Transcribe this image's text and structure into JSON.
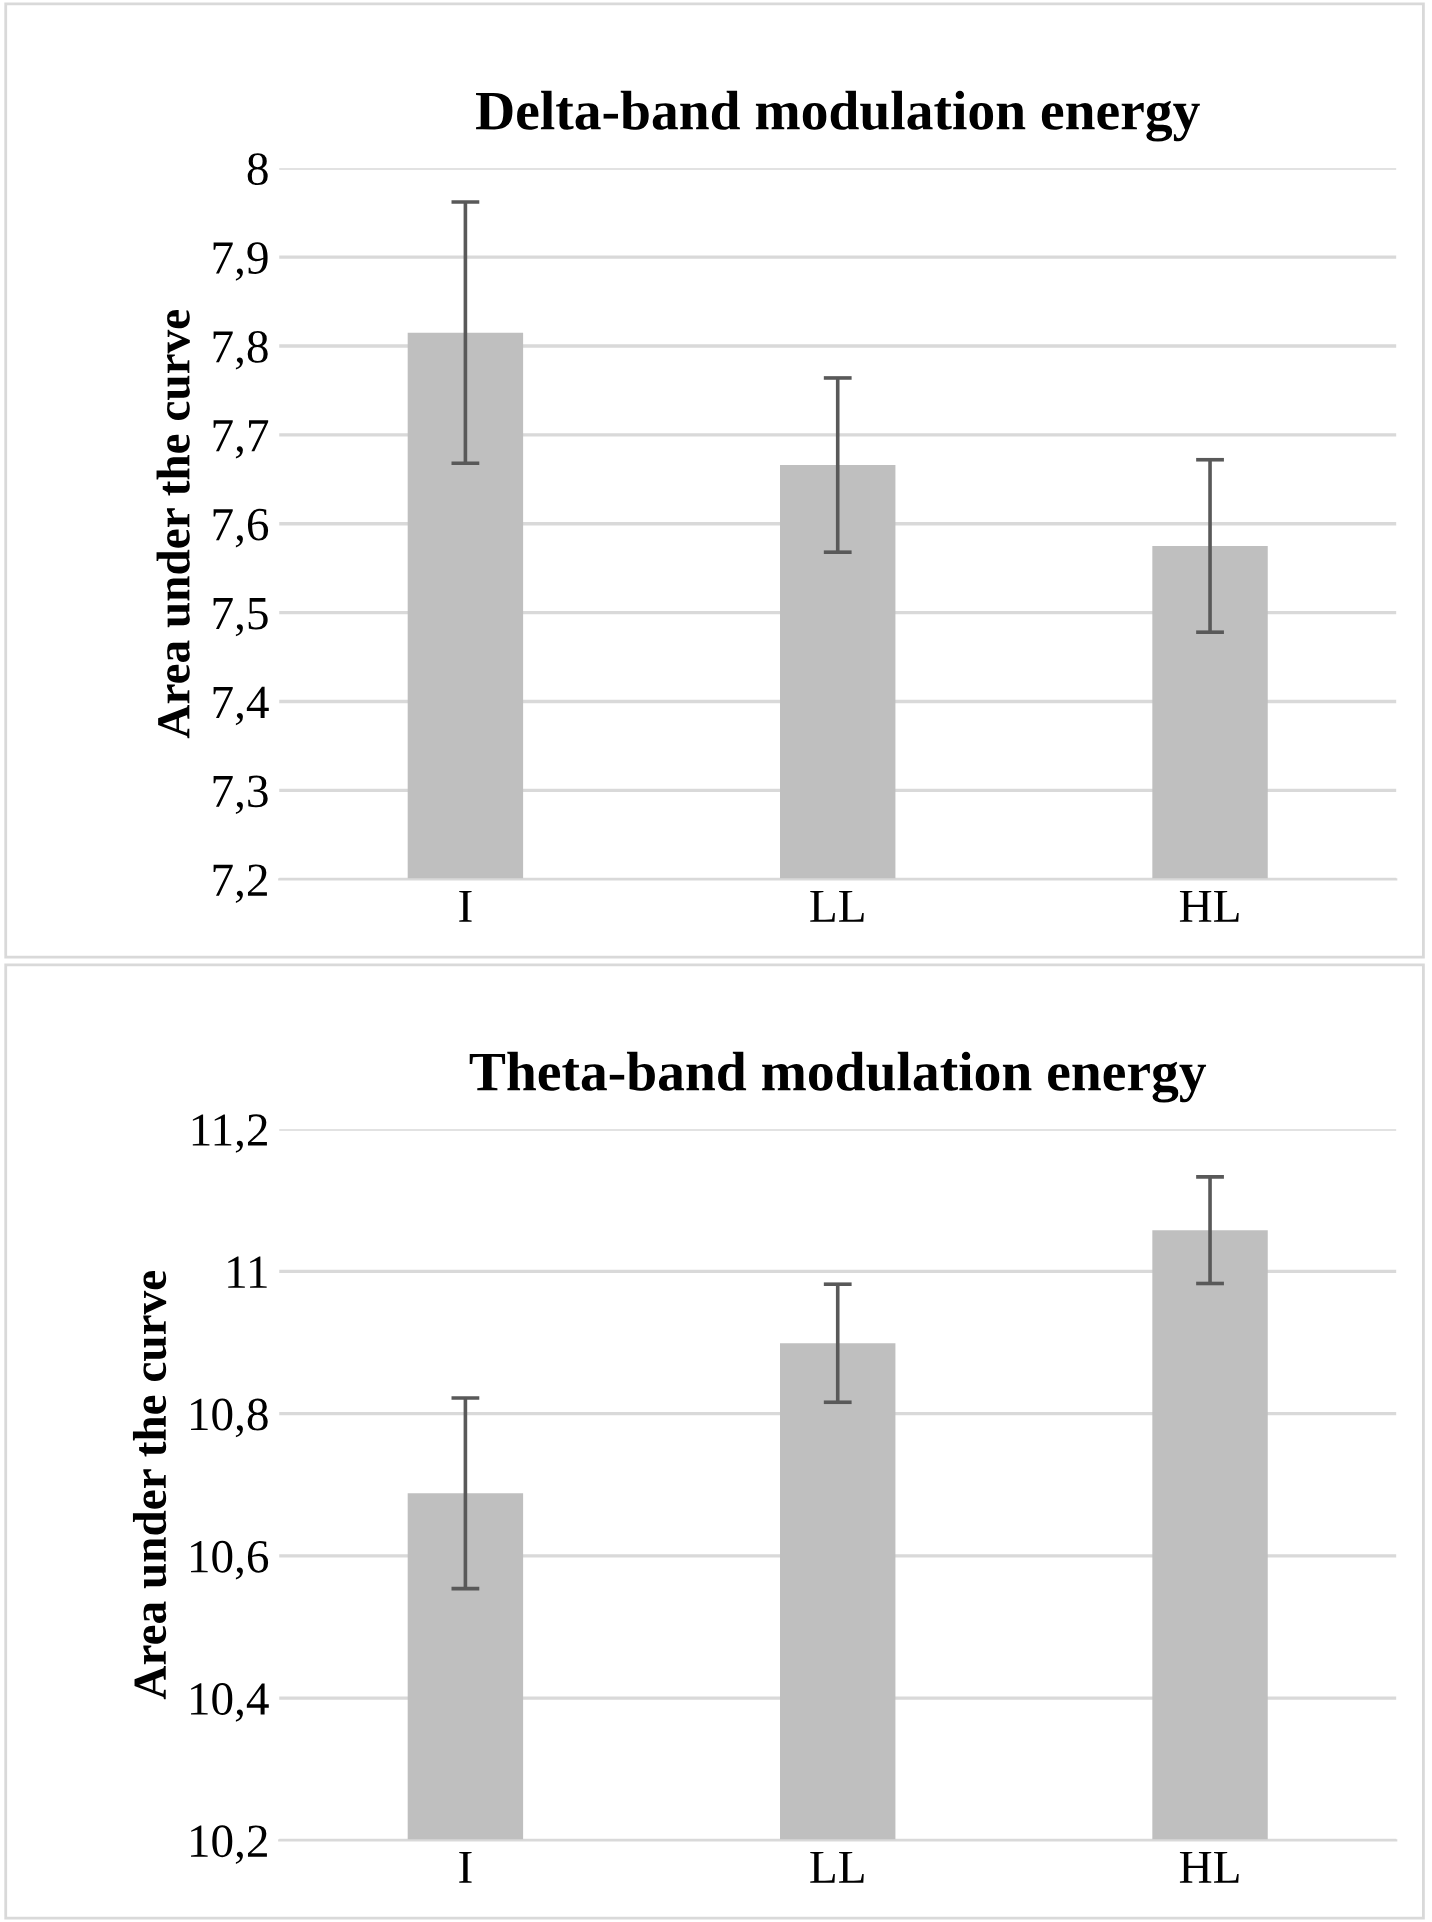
{
  "chart_data": [
    {
      "type": "bar",
      "title": "Delta-band modulation energy",
      "ylabel": "Area under the curve",
      "categories": [
        "I",
        "LL",
        "HL"
      ],
      "values": [
        7.815,
        7.666,
        7.575
      ],
      "errors": [
        0.147,
        0.098,
        0.097
      ],
      "color": "#bfbfbf",
      "ylim": [
        7.2,
        8.0
      ],
      "yticks": [
        {
          "value": 7.2,
          "label": "7,2"
        },
        {
          "value": 7.3,
          "label": "7,3"
        },
        {
          "value": 7.4,
          "label": "7,4"
        },
        {
          "value": 7.5,
          "label": "7,5"
        },
        {
          "value": 7.6,
          "label": "7,6"
        },
        {
          "value": 7.7,
          "label": "7,7"
        },
        {
          "value": 7.8,
          "label": "7,8"
        },
        {
          "value": 7.9,
          "label": "7,9"
        },
        {
          "value": 8.0,
          "label": "8"
        }
      ],
      "grid": "y"
    },
    {
      "type": "bar",
      "title": "Theta-band modulation energy",
      "ylabel": "Area under the curve",
      "categories": [
        "I",
        "LL",
        "HL"
      ],
      "values": [
        10.688,
        10.899,
        11.058
      ],
      "errors": [
        0.134,
        0.083,
        0.075
      ],
      "color": "#bfbfbf",
      "ylim": [
        10.2,
        11.2
      ],
      "yticks": [
        {
          "value": 10.2,
          "label": "10,2"
        },
        {
          "value": 10.4,
          "label": "10,4"
        },
        {
          "value": 10.6,
          "label": "10,6"
        },
        {
          "value": 10.8,
          "label": "10,8"
        },
        {
          "value": 11.0,
          "label": "11"
        },
        {
          "value": 11.2,
          "label": "11,2"
        }
      ],
      "grid": "y"
    }
  ]
}
